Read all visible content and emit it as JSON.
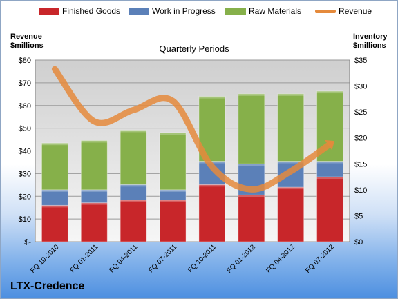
{
  "chart_data": {
    "type": "bar",
    "subtype": "stacked-bar with line overlay",
    "title": "Quarterly Periods",
    "categories": [
      "FQ 10-2010",
      "FQ 01-2011",
      "FQ 04-2011",
      "FQ 07-2011",
      "FQ 10-2011",
      "FQ 01-2012",
      "FQ 04-2012",
      "FQ 07-2012"
    ],
    "series": [
      {
        "name": "Finished Goods",
        "color": "#c8262a",
        "axis": "right",
        "values": [
          7.0,
          7.5,
          8.0,
          8.0,
          11.0,
          9.0,
          10.5,
          12.5
        ]
      },
      {
        "name": "Work in Progress",
        "color": "#5b80b8",
        "axis": "right",
        "values": [
          3.0,
          2.5,
          3.0,
          2.0,
          4.5,
          6.0,
          5.0,
          3.0
        ]
      },
      {
        "name": "Raw Materials",
        "color": "#86b04a",
        "axis": "right",
        "values": [
          9.0,
          9.5,
          10.5,
          11.0,
          12.5,
          13.5,
          13.0,
          13.5
        ]
      },
      {
        "name": "Revenue",
        "color": "#e58a3c",
        "axis": "left",
        "type": "line",
        "values": [
          76,
          53,
          58,
          62,
          33,
          23,
          31,
          43
        ]
      }
    ],
    "left_axis": {
      "label": [
        "Revenue",
        "$millions"
      ],
      "ylim": [
        0,
        80
      ],
      "ticks": [
        "$-",
        "$10",
        "$20",
        "$30",
        "$40",
        "$50",
        "$60",
        "$70",
        "$80"
      ]
    },
    "right_axis": {
      "label": [
        "Inventory",
        "$millions"
      ],
      "ylim": [
        0,
        35
      ],
      "ticks": [
        "$0",
        "$5",
        "$10",
        "$15",
        "$20",
        "$25",
        "$30",
        "$35"
      ]
    },
    "legend_position": "top",
    "grid": true
  },
  "brand": "LTX-Credence"
}
